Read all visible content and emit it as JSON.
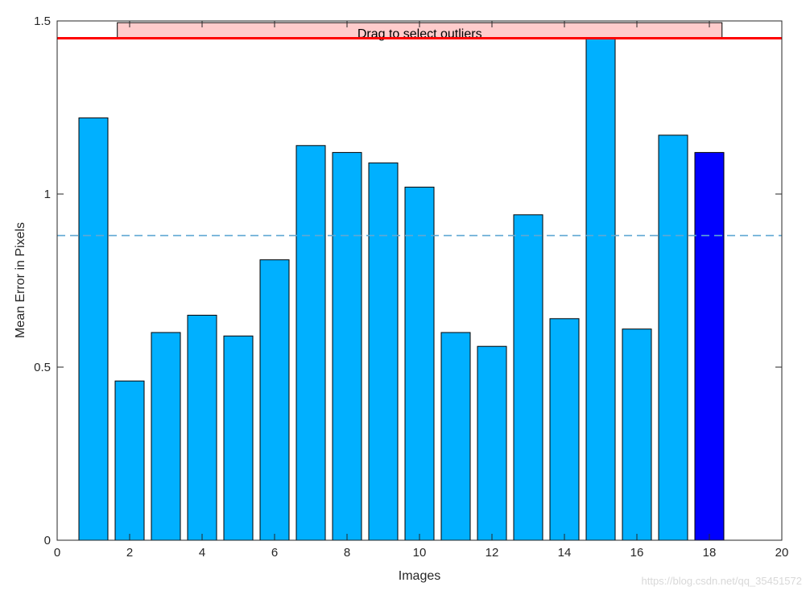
{
  "chart_data": {
    "type": "bar",
    "xlabel": "Images",
    "ylabel": "Mean Error in Pixels",
    "xlim": [
      0,
      20
    ],
    "ylim": [
      0,
      1.5
    ],
    "xticks": [
      0,
      2,
      4,
      6,
      8,
      10,
      12,
      14,
      16,
      18,
      20
    ],
    "yticks": [
      0,
      0.5,
      1,
      1.5
    ],
    "x": [
      1,
      2,
      3,
      4,
      5,
      6,
      7,
      8,
      9,
      10,
      11,
      12,
      13,
      14,
      15,
      16,
      17,
      18
    ],
    "values": [
      1.22,
      0.46,
      0.6,
      0.65,
      0.59,
      0.81,
      1.14,
      1.12,
      1.09,
      1.02,
      0.6,
      0.56,
      0.94,
      0.64,
      1.45,
      0.61,
      1.17,
      1.12
    ],
    "bar_color": "#00B0FF",
    "highlight_index": 17,
    "highlight_color": "#0000FF",
    "mean_value": 0.88,
    "mean_line_color": "#5FA8D3",
    "threshold_value": 1.45,
    "threshold_color": "#FF0000",
    "outlier_handle_label": "Drag to select outliers",
    "outlier_handle_color": "#FFCCCC",
    "grid": false
  },
  "watermark": "https://blog.csdn.net/qq_35451572"
}
